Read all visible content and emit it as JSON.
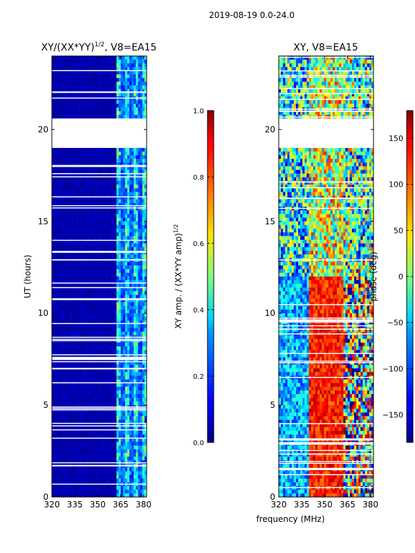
{
  "figure_title": "2019-08-19 0.0-24.0",
  "xlabel": "frequency (MHz)",
  "chart_data": [
    {
      "type": "heatmap",
      "title": "XY/(XX*YY)",
      "title_exponent": "1/2",
      "title_suffix": ", V8=EA15",
      "ylabel": "UT (hours)",
      "xlim": [
        320,
        382
      ],
      "ylim": [
        0,
        24
      ],
      "x_ticks": [
        320,
        335,
        350,
        365,
        380
      ],
      "y_ticks": [
        0,
        5,
        10,
        15,
        20
      ],
      "data_gaps_hours": [
        [
          19.0,
          20.6
        ]
      ],
      "active_band_mhz": [
        362,
        382
      ],
      "colorbar": {
        "label": "XY amp. / (XX*YY amp)",
        "label_exponent": "1/2",
        "range": [
          0.0,
          1.0
        ],
        "ticks": [
          "0.0",
          "0.2",
          "0.4",
          "0.6",
          "0.8",
          "1.0"
        ],
        "colormap": "jet"
      }
    },
    {
      "type": "heatmap",
      "title": "XY, V8=EA15",
      "xlim": [
        320,
        382
      ],
      "ylim": [
        0,
        24
      ],
      "x_ticks": [
        320,
        335,
        350,
        365,
        380
      ],
      "y_ticks": [
        0,
        5,
        10,
        15,
        20
      ],
      "data_gaps_hours": [
        [
          19.0,
          20.6
        ]
      ],
      "colorbar": {
        "label": "phase (deg)",
        "range": [
          -180,
          180
        ],
        "ticks": [
          "−150",
          "−100",
          "−50",
          "0",
          "50",
          "100",
          "150"
        ],
        "tick_values": [
          -150,
          -100,
          -50,
          0,
          50,
          100,
          150
        ],
        "colormap": "jet"
      }
    }
  ]
}
